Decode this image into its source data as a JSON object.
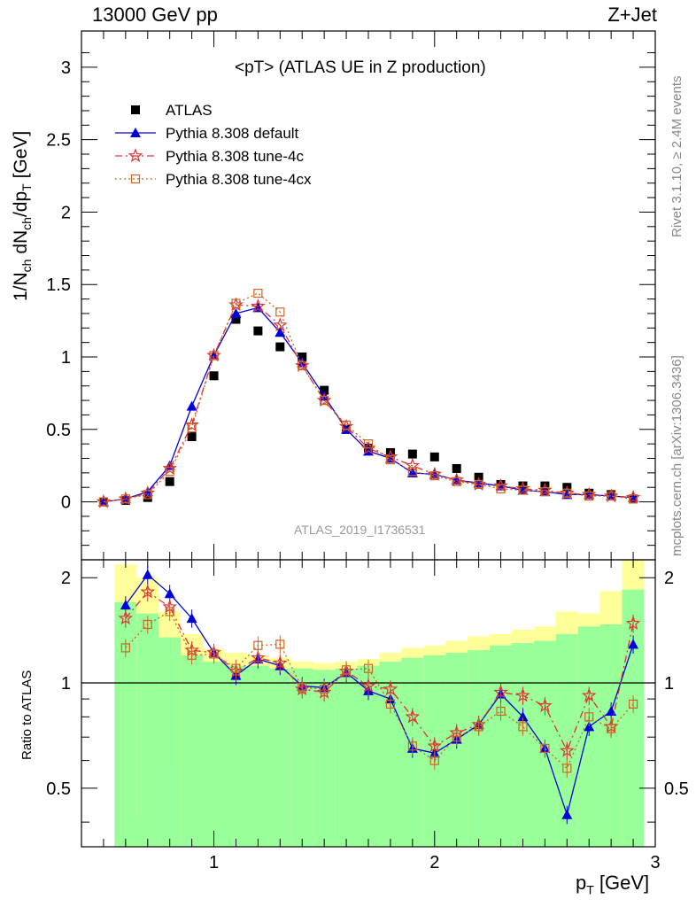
{
  "header": {
    "collision": "13000 GeV pp",
    "process": "Z+Jet"
  },
  "side_labels": {
    "rivet": "Rivet 3.1.10, ≥ 2.4M events",
    "source": "mcplots.cern.ch [arXiv:1306.3436]"
  },
  "plot_title": "<pT> (ATLAS UE in Z production)",
  "analysis_id": "ATLAS_2019_I1736531",
  "colors": {
    "atlas": "#000000",
    "default": "#0000dd",
    "tune4c": "#dd3333",
    "tune4cx": "#cc6622",
    "band_inner": "#99ff99",
    "band_outer": "#ffff99"
  },
  "chart_data": [
    {
      "type": "line",
      "panel": "main",
      "title": "<pT> (ATLAS UE in Z production)",
      "ylabel": "1/N_ch dN_ch/dp_T [GeV]",
      "xlabel": "p_T [GeV]",
      "xlim": [
        0.4,
        3.0
      ],
      "ylim": [
        -0.4,
        3.25
      ],
      "yticks": [
        "0",
        "0.5",
        "1",
        "1.5",
        "2",
        "2.5",
        "3"
      ],
      "xticks": [
        "1",
        "2",
        "3"
      ],
      "legend_position": "top-left",
      "x": [
        0.5,
        0.6,
        0.7,
        0.8,
        0.9,
        1.0,
        1.1,
        1.2,
        1.3,
        1.4,
        1.5,
        1.6,
        1.7,
        1.8,
        1.9,
        2.0,
        2.1,
        2.2,
        2.3,
        2.4,
        2.5,
        2.6,
        2.7,
        2.8,
        2.9
      ],
      "series": [
        {
          "name": "ATLAS",
          "marker": "square",
          "values": [
            0.0,
            0.01,
            0.03,
            0.14,
            0.45,
            0.87,
            1.26,
            1.18,
            1.07,
            1.0,
            0.77,
            0.5,
            0.37,
            0.34,
            0.33,
            0.31,
            0.23,
            0.17,
            0.12,
            0.11,
            0.11,
            0.1,
            0.06,
            0.05,
            0.02
          ]
        },
        {
          "name": "Pythia 8.308 default",
          "marker": "triangle",
          "style": "solid",
          "values": [
            0.0,
            0.02,
            0.07,
            0.25,
            0.66,
            1.01,
            1.3,
            1.34,
            1.17,
            0.96,
            0.73,
            0.5,
            0.35,
            0.3,
            0.2,
            0.19,
            0.15,
            0.13,
            0.11,
            0.08,
            0.07,
            0.05,
            0.05,
            0.04,
            0.03
          ]
        },
        {
          "name": "Pythia 8.308 tune-4c",
          "marker": "star",
          "style": "dashdot",
          "values": [
            0.0,
            0.02,
            0.06,
            0.23,
            0.53,
            1.01,
            1.36,
            1.35,
            1.22,
            0.94,
            0.7,
            0.52,
            0.37,
            0.31,
            0.25,
            0.19,
            0.15,
            0.12,
            0.11,
            0.09,
            0.08,
            0.06,
            0.05,
            0.04,
            0.03
          ]
        },
        {
          "name": "Pythia 8.308 tune-4cx",
          "marker": "open-square",
          "style": "dotted",
          "values": [
            0.0,
            0.02,
            0.05,
            0.21,
            0.51,
            1.01,
            1.37,
            1.44,
            1.31,
            0.94,
            0.7,
            0.53,
            0.4,
            0.29,
            0.21,
            0.18,
            0.14,
            0.12,
            0.09,
            0.08,
            0.07,
            0.06,
            0.04,
            0.04,
            0.02
          ]
        }
      ]
    },
    {
      "type": "line",
      "panel": "ratio",
      "ylabel": "Ratio to ATLAS",
      "xlabel": "p_T [GeV]",
      "xlim": [
        0.4,
        3.0
      ],
      "ylim": [
        0.34,
        2.25
      ],
      "yticks": [
        "0.5",
        "1",
        "2"
      ],
      "reference_line": 1,
      "bins": [
        0.55,
        0.65,
        0.75,
        0.85,
        0.95,
        1.05,
        1.15,
        1.25,
        1.35,
        1.45,
        1.55,
        1.65,
        1.75,
        1.85,
        1.95,
        2.05,
        2.15,
        2.25,
        2.35,
        2.45,
        2.55,
        2.65,
        2.75,
        2.85,
        2.95
      ],
      "band_outer": {
        "lo": [
          0.3,
          0.42,
          0.58,
          0.8,
          0.88,
          0.9,
          0.9,
          0.9,
          0.9,
          0.88,
          0.86,
          0.85,
          0.82,
          0.78,
          0.75,
          0.75,
          0.75,
          0.7,
          0.58,
          0.55,
          0.4,
          0.62,
          0.4,
          0.34
        ],
        "hi": [
          2.18,
          2.0,
          1.6,
          1.38,
          1.25,
          1.22,
          1.2,
          1.18,
          1.15,
          1.14,
          1.15,
          1.17,
          1.22,
          1.26,
          1.28,
          1.32,
          1.36,
          1.38,
          1.42,
          1.45,
          1.6,
          1.58,
          1.83,
          2.25
        ]
      },
      "band_inner": {
        "lo": [
          0.3,
          0.3,
          0.3,
          0.3,
          0.34,
          0.34,
          0.34,
          0.34,
          0.34,
          0.34,
          0.34,
          0.34,
          0.34,
          0.34,
          0.34,
          0.34,
          0.34,
          0.34,
          0.34,
          0.34,
          0.34,
          0.34,
          0.34,
          0.34
        ],
        "hi": [
          1.7,
          1.58,
          1.35,
          1.2,
          1.15,
          1.12,
          1.12,
          1.1,
          1.1,
          1.09,
          1.1,
          1.12,
          1.15,
          1.18,
          1.2,
          1.22,
          1.24,
          1.28,
          1.3,
          1.32,
          1.38,
          1.45,
          1.47,
          1.85
        ]
      },
      "x": [
        0.6,
        0.7,
        0.8,
        0.9,
        1.0,
        1.1,
        1.2,
        1.3,
        1.4,
        1.5,
        1.6,
        1.7,
        1.8,
        1.9,
        2.0,
        2.1,
        2.2,
        2.3,
        2.4,
        2.5,
        2.6,
        2.7,
        2.8,
        2.9
      ],
      "series": [
        {
          "name": "Pythia 8.308 default",
          "values": [
            1.67,
            2.04,
            1.8,
            1.53,
            1.22,
            1.05,
            1.17,
            1.12,
            0.98,
            0.97,
            1.07,
            0.95,
            0.9,
            0.65,
            0.63,
            0.69,
            0.76,
            0.93,
            0.8,
            0.65,
            0.42,
            0.75,
            0.83,
            1.29
          ]
        },
        {
          "name": "Pythia 8.308 tune-4c",
          "values": [
            1.53,
            1.82,
            1.65,
            1.24,
            1.22,
            1.08,
            1.18,
            1.14,
            0.96,
            0.94,
            1.08,
            0.98,
            0.96,
            0.8,
            0.66,
            0.72,
            0.76,
            0.94,
            0.92,
            0.86,
            0.64,
            0.92,
            0.75,
            1.48
          ]
        },
        {
          "name": "Pythia 8.308 tune-4cx",
          "values": [
            1.26,
            1.47,
            1.6,
            1.2,
            1.21,
            1.1,
            1.28,
            1.29,
            0.97,
            0.96,
            1.09,
            1.1,
            0.87,
            0.66,
            0.6,
            0.7,
            0.75,
            0.83,
            0.75,
            0.65,
            0.57,
            0.8,
            0.74,
            0.87
          ]
        }
      ]
    }
  ]
}
